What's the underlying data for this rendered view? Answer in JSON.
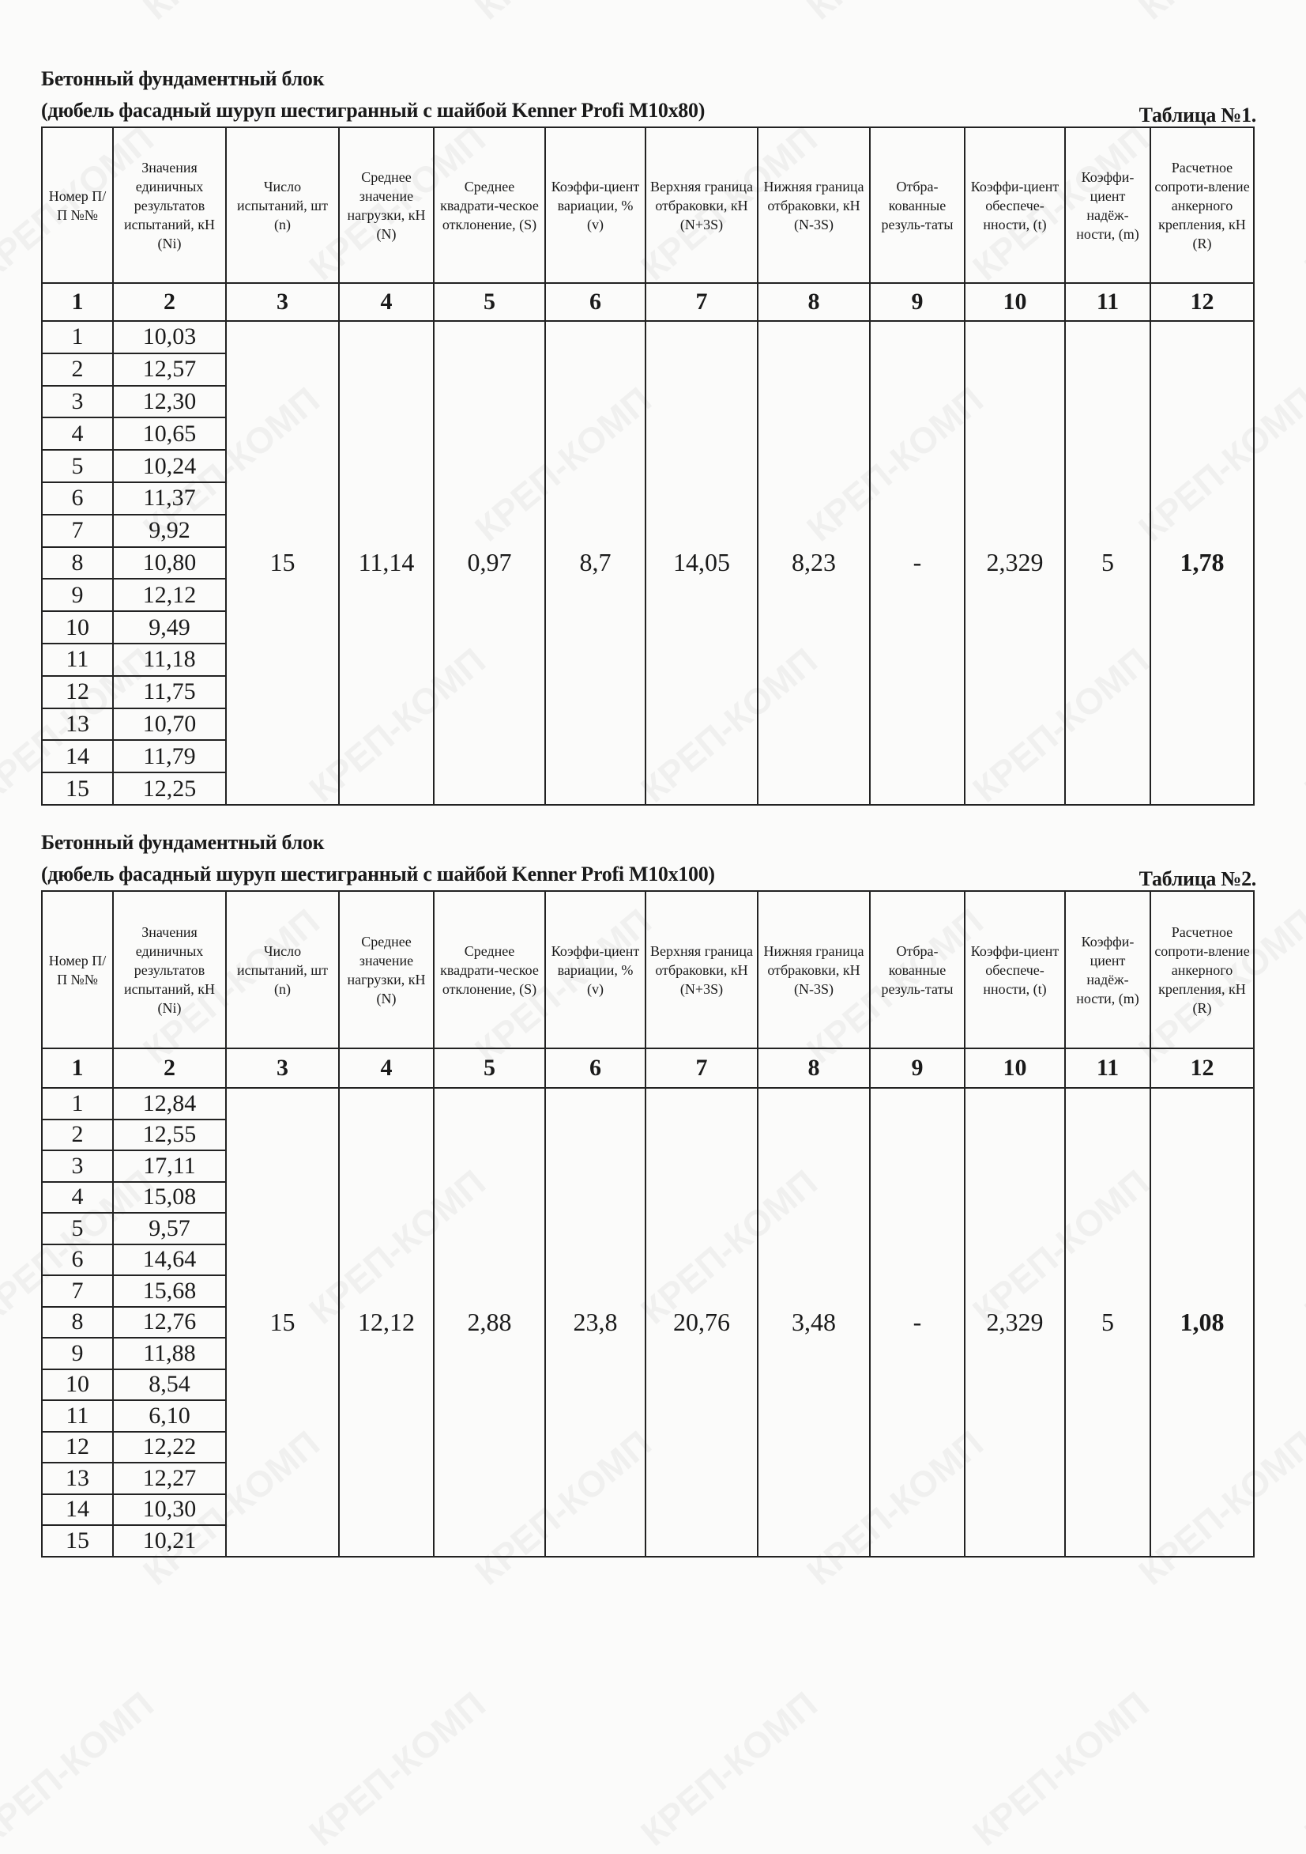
{
  "watermark": "КРЕП-КОМП",
  "headers": [
    "Номер П/П №№",
    "Значения единичных результатов испытаний, кН (Ni)",
    "Число испытаний, шт (n)",
    "Среднее значение нагрузки, кН (N)",
    "Среднее квадрати-ческое отклонение, (S)",
    "Коэффи-циент вариации, % (v)",
    "Верхняя граница отбраковки, кН (N+3S)",
    "Нижняя граница отбраковки, кН (N-3S)",
    "Отбра-кованные резуль-таты",
    "Коэффи-циент обеспече-нности, (t)",
    "Коэффи-циент надёж-ности, (m)",
    "Расчетное сопроти-вление анкерного крепления, кН (R)"
  ],
  "column_numbers": [
    "1",
    "2",
    "3",
    "4",
    "5",
    "6",
    "7",
    "8",
    "9",
    "10",
    "11",
    "12"
  ],
  "tables": [
    {
      "title_line1": "Бетонный фундаментный блок",
      "title_line2": "(дюбель фасадный шуруп шестигранный с шайбой Kenner Profi M10x80)",
      "table_label": "Таблица №1.",
      "rows": [
        [
          "1",
          "10,03"
        ],
        [
          "2",
          "12,57"
        ],
        [
          "3",
          "12,30"
        ],
        [
          "4",
          "10,65"
        ],
        [
          "5",
          "10,24"
        ],
        [
          "6",
          "11,37"
        ],
        [
          "7",
          "9,92"
        ],
        [
          "8",
          "10,80"
        ],
        [
          "9",
          "12,12"
        ],
        [
          "10",
          "9,49"
        ],
        [
          "11",
          "11,18"
        ],
        [
          "12",
          "11,75"
        ],
        [
          "13",
          "10,70"
        ],
        [
          "14",
          "11,79"
        ],
        [
          "15",
          "12,25"
        ]
      ],
      "summary": [
        "15",
        "11,14",
        "0,97",
        "8,7",
        "14,05",
        "8,23",
        "-",
        "2,329",
        "5",
        "1,78"
      ]
    },
    {
      "title_line1": "Бетонный фундаментный блок",
      "title_line2": "(дюбель фасадный шуруп шестигранный с шайбой Kenner Profi M10x100)",
      "table_label": "Таблица №2.",
      "rows": [
        [
          "1",
          "12,84"
        ],
        [
          "2",
          "12,55"
        ],
        [
          "3",
          "17,11"
        ],
        [
          "4",
          "15,08"
        ],
        [
          "5",
          "9,57"
        ],
        [
          "6",
          "14,64"
        ],
        [
          "7",
          "15,68"
        ],
        [
          "8",
          "12,76"
        ],
        [
          "9",
          "11,88"
        ],
        [
          "10",
          "8,54"
        ],
        [
          "11",
          "6,10"
        ],
        [
          "12",
          "12,22"
        ],
        [
          "13",
          "12,27"
        ],
        [
          "14",
          "10,30"
        ],
        [
          "15",
          "10,21"
        ]
      ],
      "summary": [
        "15",
        "12,12",
        "2,88",
        "23,8",
        "20,76",
        "3,48",
        "-",
        "2,329",
        "5",
        "1,08"
      ]
    }
  ]
}
